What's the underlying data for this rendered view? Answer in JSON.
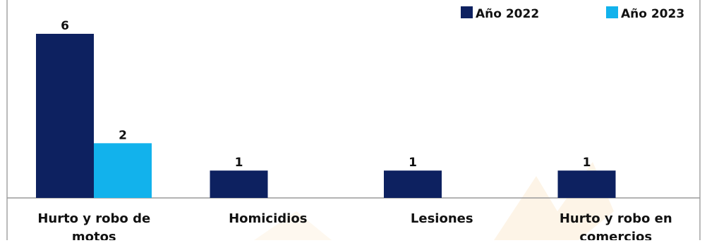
{
  "chart_data": {
    "type": "bar",
    "categories": [
      [
        "Hurto y robo de",
        "motos"
      ],
      [
        "Homicidios"
      ],
      [
        "Lesiones"
      ],
      [
        "Hurto y robo en",
        "comercios"
      ]
    ],
    "series": [
      {
        "name": "Año 2022",
        "color": "#0d2160",
        "values": [
          6,
          1,
          1,
          1
        ]
      },
      {
        "name": "Año 2023",
        "color": "#12b2ec",
        "values": [
          2,
          null,
          null,
          null
        ]
      }
    ],
    "ylim": [
      0,
      6
    ],
    "grid": false,
    "legend": "top-right",
    "data_labels": true
  },
  "colors": {
    "frame": "#8c8c8c",
    "baseline": "#9a9a9a",
    "watermark": "#f3c27a"
  }
}
